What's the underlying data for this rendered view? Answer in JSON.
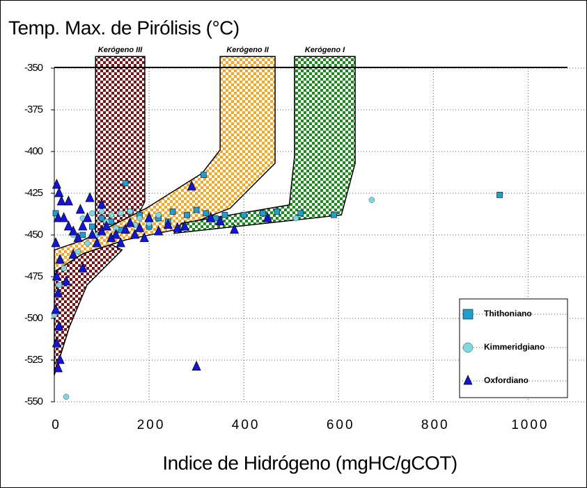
{
  "chart_data": {
    "type": "scatter",
    "title": "Temp. Max. de Pirólisis (°C)",
    "x_label": "Indice de Hidrógeno (mgHC/gCOT)",
    "xlim": [
      0,
      1120
    ],
    "ylim": [
      -550,
      -350
    ],
    "xticks": [
      0,
      200,
      400,
      600,
      800,
      1000
    ],
    "yticks": [
      -350,
      -375,
      -400,
      -425,
      -450,
      -475,
      -500,
      -525,
      -550
    ],
    "grid": true,
    "legend": "lower right",
    "regions": [
      {
        "name": "Kerógeno III",
        "color": "#7a1414",
        "x": [
          87,
          191,
          191,
          150,
          62,
          0,
          0,
          32,
          69,
          143,
          87
        ],
        "y": [
          -343,
          -343,
          -430,
          -453,
          -461,
          -472,
          -534,
          -505,
          -480,
          -459,
          -451
        ]
      },
      {
        "name": "Kerógeno II",
        "color": "#f5a623",
        "x": [
          350,
          350,
          312,
          194,
          62,
          0,
          0,
          62,
          150,
          253,
          371,
          466,
          466
        ],
        "y": [
          -343,
          -399,
          -413,
          -434,
          -453,
          -459,
          -472,
          -461,
          -453,
          -447,
          -434,
          -407,
          -343
        ]
      },
      {
        "name": "Kerógeno I",
        "color": "#1a8a1a",
        "x": [
          507,
          635,
          635,
          606,
          253,
          268,
          496,
          507
        ],
        "y": [
          -343,
          -343,
          -407,
          -438,
          -449,
          -443,
          -432,
          -403
        ]
      }
    ],
    "series": [
      {
        "name": "Thithoniano",
        "color": "#1f9fc9",
        "marker": "square",
        "x": [
          3,
          150,
          315,
          940,
          590,
          60,
          100,
          120,
          180,
          200,
          220,
          250,
          280,
          300,
          320,
          340,
          360,
          400,
          440,
          470,
          520,
          140,
          80,
          240,
          160
        ],
        "y": [
          -437,
          -419,
          -414,
          -426,
          -438,
          -450,
          -440,
          -442,
          -438,
          -445,
          -440,
          -436,
          -438,
          -435,
          -437,
          -440,
          -438,
          -438,
          -437,
          -436,
          -437,
          -447,
          -445,
          -442,
          -436
        ]
      },
      {
        "name": "Kimmeridgiano",
        "color": "#7fd8e0",
        "marker": "circle",
        "x": [
          670,
          510,
          25,
          0,
          20,
          40,
          60,
          80,
          100,
          120,
          140,
          160,
          180,
          200,
          220,
          130,
          90,
          50,
          10,
          110,
          170,
          70,
          150
        ],
        "y": [
          -429,
          -440,
          -547,
          -498,
          -470,
          -450,
          -440,
          -437,
          -436,
          -438,
          -437,
          -436,
          -440,
          -443,
          -438,
          -446,
          -450,
          -460,
          -480,
          -442,
          -444,
          -455,
          -447
        ]
      },
      {
        "name": "Oxfordiano",
        "color": "#1414e0",
        "marker": "triangle",
        "x": [
          5,
          10,
          15,
          8,
          3,
          12,
          5,
          8,
          3,
          10,
          5,
          12,
          8,
          20,
          30,
          40,
          50,
          60,
          70,
          80,
          90,
          100,
          110,
          120,
          130,
          140,
          150,
          160,
          170,
          180,
          190,
          200,
          220,
          240,
          260,
          275,
          290,
          300,
          330,
          350,
          380,
          450,
          40,
          60,
          25,
          30,
          75,
          100,
          55
        ],
        "y": [
          -420,
          -425,
          -430,
          -440,
          -455,
          -465,
          -475,
          -485,
          -495,
          -505,
          -515,
          -525,
          -530,
          -440,
          -445,
          -448,
          -452,
          -445,
          -440,
          -450,
          -455,
          -448,
          -445,
          -452,
          -450,
          -455,
          -447,
          -443,
          -450,
          -446,
          -452,
          -440,
          -448,
          -444,
          -446,
          -445,
          -421,
          -529,
          -440,
          -442,
          -447,
          -440,
          -462,
          -470,
          -478,
          -430,
          -428,
          -432,
          -435
        ]
      }
    ]
  }
}
